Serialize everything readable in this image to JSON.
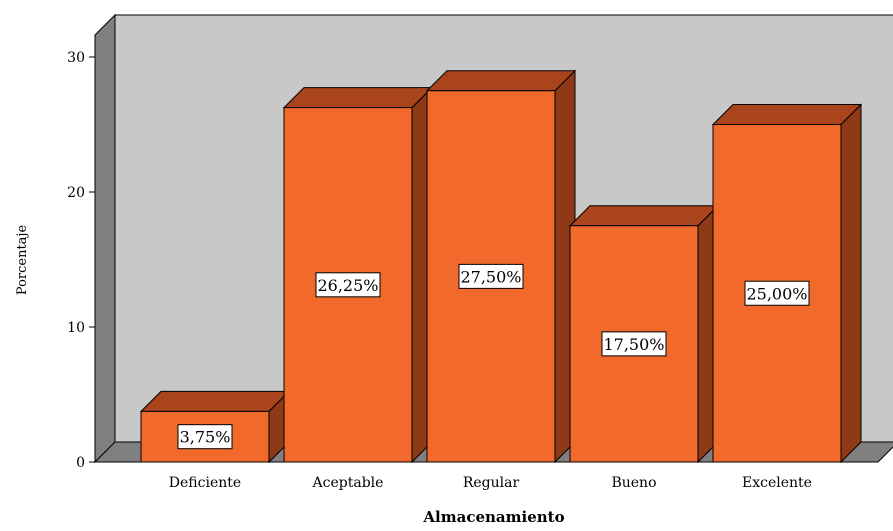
{
  "chart_data": {
    "type": "bar",
    "title": "",
    "xlabel": "Almacenamiento",
    "ylabel": "Porcentaje",
    "categories": [
      "Deficiente",
      "Aceptable",
      "Regular",
      "Bueno",
      "Excelente"
    ],
    "values": [
      3.75,
      26.25,
      27.5,
      17.5,
      25.0
    ],
    "data_labels": [
      "3,75%",
      "26,25%",
      "27,50%",
      "17,50%",
      "25,00%"
    ],
    "y_ticks": [
      "0",
      "10",
      "20",
      "30"
    ],
    "ylim": [
      0,
      30
    ],
    "grid": false,
    "legend": "none",
    "style": "3d",
    "colors": {
      "bar_front": "#f26a2b",
      "bar_top": "#a9441c",
      "bar_side": "#8e3a17",
      "plot_background": "#c8c8c8",
      "side_wall": "#808080",
      "floor": "#808080"
    }
  }
}
